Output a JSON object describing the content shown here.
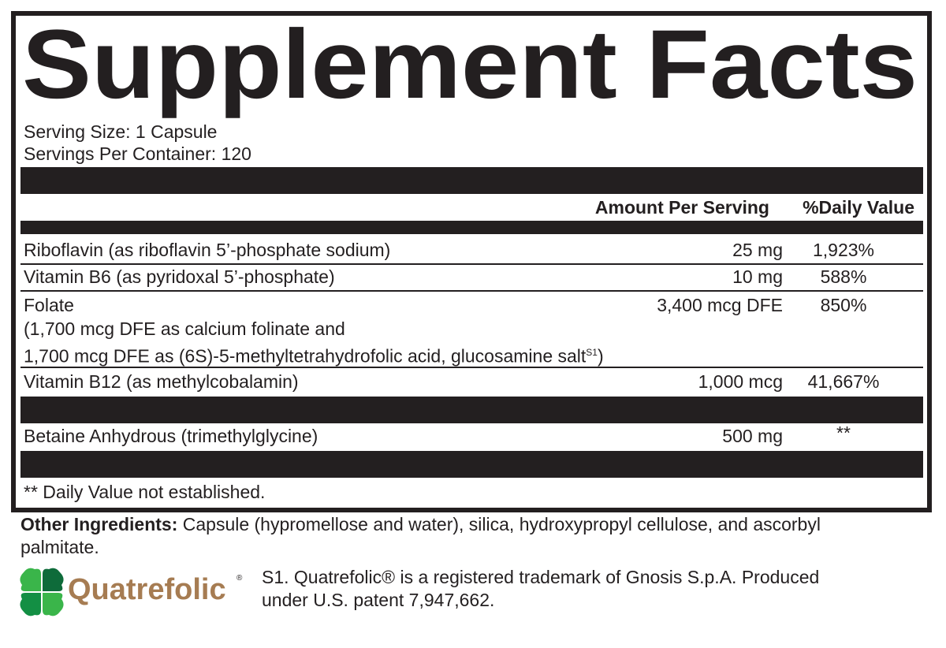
{
  "title": "Supplement Facts",
  "serving_size": "Serving Size: 1 Capsule",
  "servings_per_container": "Servings Per Container: 120",
  "headers": {
    "amount": "Amount Per Serving",
    "dv": "%Daily Value"
  },
  "rows": [
    {
      "name": "Riboflavin (as riboflavin 5’-phosphate sodium)",
      "amount": "25 mg",
      "dv": "1,923%"
    },
    {
      "name": "Vitamin B6 (as pyridoxal 5’-phosphate)",
      "amount": "10 mg",
      "dv": "588%"
    },
    {
      "name": "Folate",
      "sub1": "(1,700 mcg DFE as calcium folinate and",
      "sub2": "1,700 mcg DFE as (6S)-5-methyltetrahydrofolic acid, glucosamine salt",
      "sup": "S1",
      "sub2_end": ")",
      "amount": "3,400 mcg DFE",
      "dv": "850%"
    },
    {
      "name": "Vitamin B12 (as methylcobalamin)",
      "amount": "1,000 mcg",
      "dv": "41,667%"
    },
    {
      "name": "Betaine Anhydrous (trimethylglycine)",
      "amount": "500 mg",
      "dv": "**"
    }
  ],
  "footnote": "** Daily Value not established.",
  "other_ingredients": {
    "label": "Other Ingredients:",
    "text": " Capsule (hypromellose and water), silica, hydroxypropyl cellulose, and ascorbyl",
    "text2": "palmitate."
  },
  "logo": {
    "text": "Quatrefolic",
    "reg": "®",
    "color_text": "#a67c52",
    "color_leaf": "#1e9a48"
  },
  "trademark": {
    "line1": "S1. Quatrefolic® is a registered trademark of Gnosis S.p.A. Produced",
    "line2": "under U.S. patent 7,947,662."
  }
}
